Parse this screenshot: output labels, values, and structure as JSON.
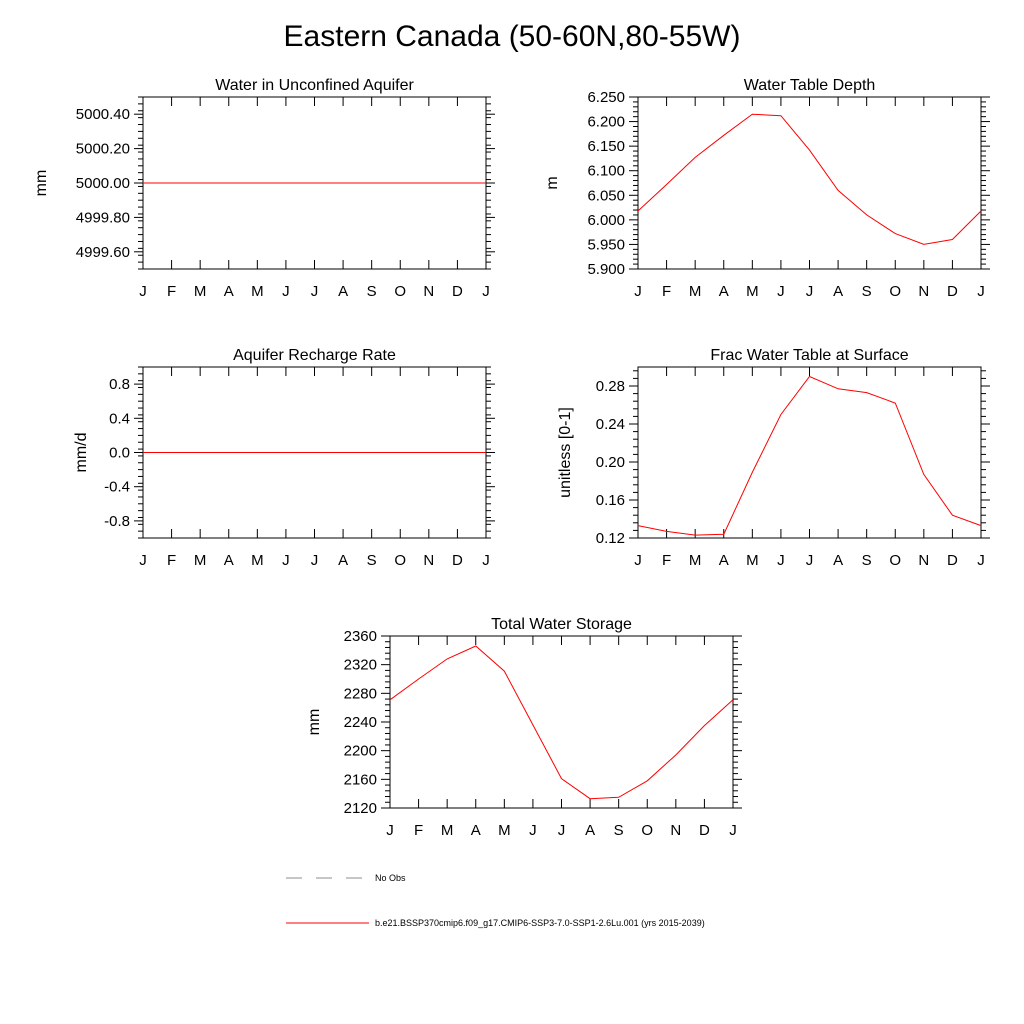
{
  "title": "Eastern Canada (50-60N,80-55W)",
  "colors": {
    "series": "#ff0000",
    "obs": "#8c8c8c",
    "axis": "#000000"
  },
  "chart_data": [
    {
      "type": "line",
      "title": "Water in Unconfined Aquifer",
      "ylabel": "mm",
      "x": [
        "J",
        "F",
        "M",
        "A",
        "M",
        "J",
        "J",
        "A",
        "S",
        "O",
        "N",
        "D",
        "J"
      ],
      "ylim": [
        4999.5,
        5000.5
      ],
      "yticks": [
        4999.6,
        4999.8,
        5000.0,
        5000.2,
        5000.4
      ],
      "ytick_labels": [
        "4999.60",
        "4999.80",
        "5000.00",
        "5000.20",
        "5000.40"
      ],
      "series": [
        {
          "values": [
            5000,
            5000,
            5000,
            5000,
            5000,
            5000,
            5000,
            5000,
            5000,
            5000,
            5000,
            5000,
            5000
          ]
        }
      ]
    },
    {
      "type": "line",
      "title": "Water Table Depth",
      "ylabel": "m",
      "x": [
        "J",
        "F",
        "M",
        "A",
        "M",
        "J",
        "J",
        "A",
        "S",
        "O",
        "N",
        "D",
        "J"
      ],
      "ylim": [
        5.9,
        6.25
      ],
      "yticks": [
        5.9,
        5.95,
        6.0,
        6.05,
        6.1,
        6.15,
        6.2,
        6.25
      ],
      "ytick_labels": [
        "5.900",
        "5.950",
        "6.000",
        "6.050",
        "6.100",
        "6.150",
        "6.200",
        "6.250"
      ],
      "series": [
        {
          "values": [
            6.018,
            6.072,
            6.127,
            6.172,
            6.215,
            6.212,
            6.142,
            6.06,
            6.01,
            5.972,
            5.95,
            5.96,
            6.018
          ]
        }
      ]
    },
    {
      "type": "line",
      "title": "Aquifer Recharge Rate",
      "ylabel": "mm/d",
      "x": [
        "J",
        "F",
        "M",
        "A",
        "M",
        "J",
        "J",
        "A",
        "S",
        "O",
        "N",
        "D",
        "J"
      ],
      "ylim": [
        -1.0,
        1.0
      ],
      "yticks": [
        -0.8,
        -0.4,
        0.0,
        0.4,
        0.8
      ],
      "ytick_labels": [
        "-0.8",
        "-0.4",
        "0.0",
        "0.4",
        "0.8"
      ],
      "series": [
        {
          "values": [
            0,
            0,
            0,
            0,
            0,
            0,
            0,
            0,
            0,
            0,
            0,
            0,
            0
          ]
        }
      ]
    },
    {
      "type": "line",
      "title": "Frac Water Table at Surface",
      "ylabel": "unitless [0-1]",
      "x": [
        "J",
        "F",
        "M",
        "A",
        "M",
        "J",
        "J",
        "A",
        "S",
        "O",
        "N",
        "D",
        "J"
      ],
      "ylim": [
        0.12,
        0.3
      ],
      "yticks": [
        0.12,
        0.16,
        0.2,
        0.24,
        0.28
      ],
      "ytick_labels": [
        "0.12",
        "0.16",
        "0.20",
        "0.24",
        "0.28"
      ],
      "series": [
        {
          "values": [
            0.133,
            0.127,
            0.123,
            0.124,
            0.189,
            0.25,
            0.29,
            0.277,
            0.273,
            0.262,
            0.187,
            0.144,
            0.133
          ]
        }
      ]
    },
    {
      "type": "line",
      "title": "Total Water Storage",
      "ylabel": "mm",
      "x": [
        "J",
        "F",
        "M",
        "A",
        "M",
        "J",
        "J",
        "A",
        "S",
        "O",
        "N",
        "D",
        "J"
      ],
      "ylim": [
        2120,
        2360
      ],
      "yticks": [
        2120,
        2160,
        2200,
        2240,
        2280,
        2320,
        2360
      ],
      "ytick_labels": [
        "2120",
        "2160",
        "2200",
        "2240",
        "2280",
        "2320",
        "2360"
      ],
      "series": [
        {
          "values": [
            2271,
            2300,
            2328,
            2346,
            2311,
            2236,
            2161,
            2133,
            2135,
            2158,
            2194,
            2235,
            2271
          ]
        }
      ]
    }
  ],
  "legend": {
    "items": [
      {
        "label": "No Obs",
        "style": "dashed"
      },
      {
        "label": "b.e21.BSSP370cmip6.f09_g17.CMIP6-SSP3-7.0-SSP1-2.6Lu.001 (yrs 2015-2039)",
        "style": "solid"
      }
    ]
  }
}
